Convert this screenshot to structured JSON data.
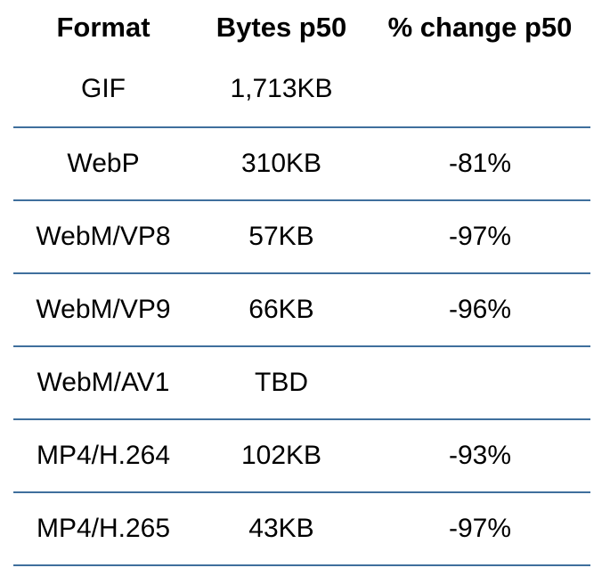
{
  "table": {
    "columns": [
      "Format",
      "Bytes p50",
      "% change p50"
    ],
    "rows": [
      {
        "format": "GIF",
        "bytes": "1,713KB",
        "change": ""
      },
      {
        "format": "WebP",
        "bytes": "310KB",
        "change": "-81%"
      },
      {
        "format": "WebM/VP8",
        "bytes": "57KB",
        "change": "-97%"
      },
      {
        "format": "WebM/VP9",
        "bytes": "66KB",
        "change": "-96%"
      },
      {
        "format": "WebM/AV1",
        "bytes": "TBD",
        "change": ""
      },
      {
        "format": "MP4/H.264",
        "bytes": "102KB",
        "change": "-93%"
      },
      {
        "format": "MP4/H.265",
        "bytes": "43KB",
        "change": "-97%"
      }
    ]
  },
  "colors": {
    "divider": "#3f6f9d",
    "text": "#000000",
    "background": "#ffffff"
  }
}
